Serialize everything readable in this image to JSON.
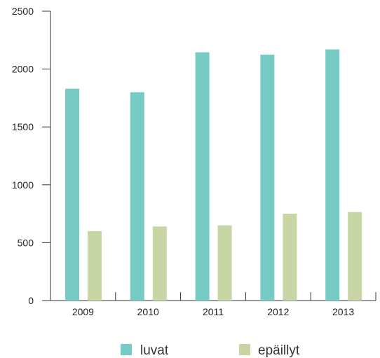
{
  "chart_data": {
    "type": "bar",
    "title": "",
    "xlabel": "",
    "ylabel": "",
    "categories": [
      "2009",
      "2010",
      "2011",
      "2012",
      "2013"
    ],
    "series": [
      {
        "name": "luvat",
        "color": "#76CBC5",
        "values": [
          1830,
          1800,
          2145,
          2125,
          2170
        ]
      },
      {
        "name": "epäillyt",
        "color": "#C8D6A5",
        "values": [
          600,
          640,
          650,
          750,
          765
        ]
      }
    ],
    "ylim": [
      0,
      2500
    ],
    "yticks": [
      0,
      500,
      1000,
      1500,
      2000,
      2500
    ],
    "grid": false,
    "legend": "bottom-center"
  }
}
